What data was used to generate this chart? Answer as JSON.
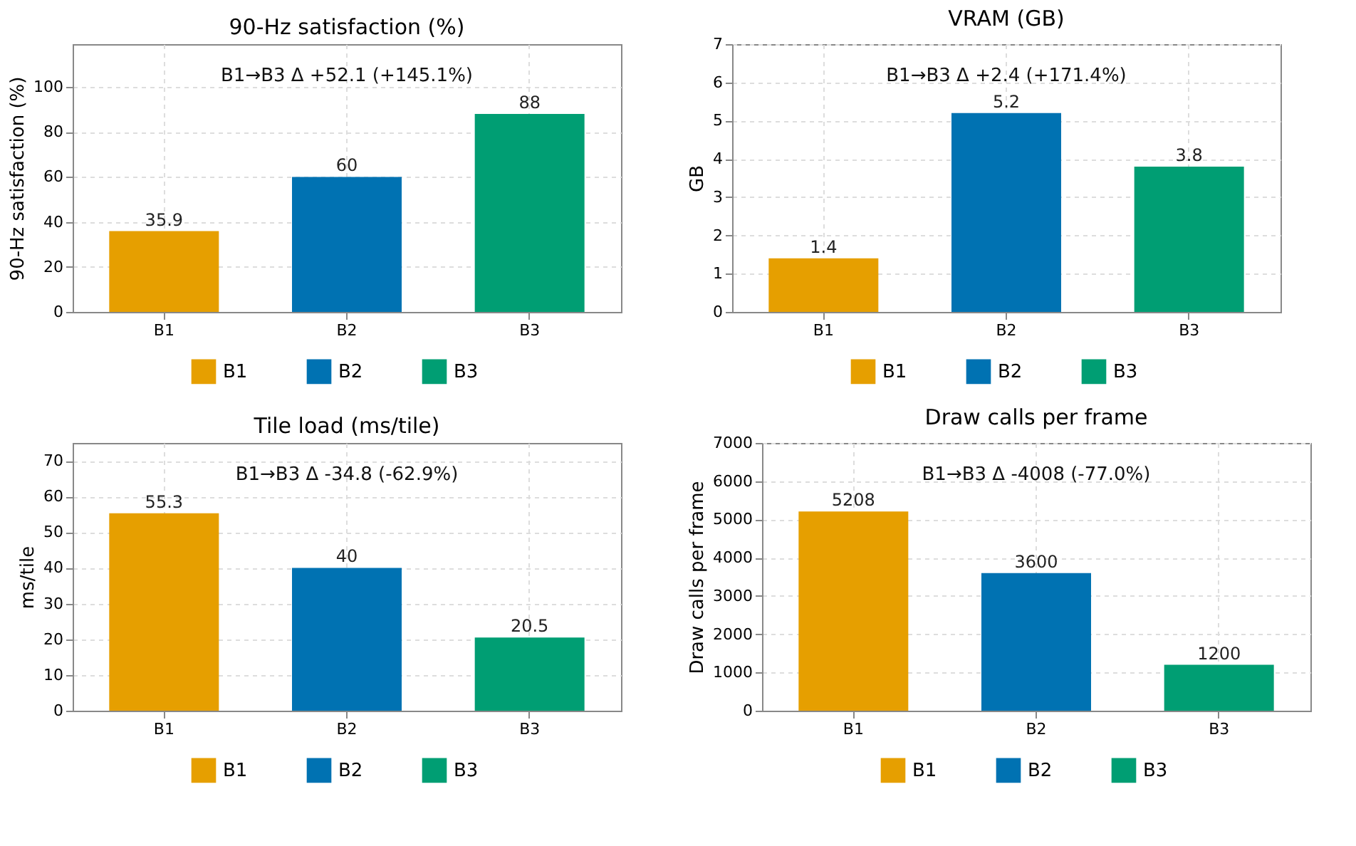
{
  "chart_data": [
    {
      "type": "bar",
      "title": "90-Hz satisfaction (%)",
      "ylabel": "90-Hz satisfaction (%)",
      "categories": [
        "B1",
        "B2",
        "B3"
      ],
      "series": [
        {
          "name": "B1",
          "color": "#e69f00",
          "values": [
            35.9,
            null,
            null
          ]
        },
        {
          "name": "B2",
          "color": "#0072b2",
          "values": [
            null,
            60,
            null
          ]
        },
        {
          "name": "B3",
          "color": "#009e73",
          "values": [
            null,
            null,
            88
          ]
        }
      ],
      "ylim": [
        0,
        119
      ],
      "yticks": [
        0,
        20,
        40,
        60,
        80,
        100
      ],
      "grid": true,
      "legend": "bottom",
      "data_labels": true,
      "annotations": [
        "B1→B3 Δ +52.1 (+145.1%)"
      ]
    },
    {
      "type": "bar",
      "title": "VRAM (GB)",
      "ylabel": "GB",
      "categories": [
        "B1",
        "B2",
        "B3"
      ],
      "series": [
        {
          "name": "B1",
          "color": "#e69f00",
          "values": [
            1.4,
            null,
            null
          ]
        },
        {
          "name": "B2",
          "color": "#0072b2",
          "values": [
            null,
            5.2,
            null
          ]
        },
        {
          "name": "B3",
          "color": "#009e73",
          "values": [
            null,
            null,
            3.8
          ]
        }
      ],
      "ylim": [
        0,
        7
      ],
      "yticks": [
        0,
        1,
        2,
        3,
        4,
        5,
        6,
        7
      ],
      "grid": true,
      "legend": "bottom",
      "data_labels": true,
      "annotations": [
        "B1→B3 Δ +2.4 (+171.4%)"
      ]
    },
    {
      "type": "bar",
      "title": "Tile load (ms/tile)",
      "ylabel": "ms/tile",
      "categories": [
        "B1",
        "B2",
        "B3"
      ],
      "series": [
        {
          "name": "B1",
          "color": "#e69f00",
          "values": [
            55.3,
            null,
            null
          ]
        },
        {
          "name": "B2",
          "color": "#0072b2",
          "values": [
            null,
            40,
            null
          ]
        },
        {
          "name": "B3",
          "color": "#009e73",
          "values": [
            null,
            null,
            20.5
          ]
        }
      ],
      "ylim": [
        0,
        75
      ],
      "yticks": [
        0,
        10,
        20,
        30,
        40,
        50,
        60,
        70
      ],
      "grid": true,
      "legend": "bottom",
      "data_labels": true,
      "annotations": [
        "B1→B3 Δ -34.8 (-62.9%)"
      ]
    },
    {
      "type": "bar",
      "title": "Draw calls per frame",
      "ylabel": "Draw calls per frame",
      "categories": [
        "B1",
        "B2",
        "B3"
      ],
      "series": [
        {
          "name": "B1",
          "color": "#e69f00",
          "values": [
            5208,
            null,
            null
          ]
        },
        {
          "name": "B2",
          "color": "#0072b2",
          "values": [
            null,
            3600,
            null
          ]
        },
        {
          "name": "B3",
          "color": "#009e73",
          "values": [
            null,
            null,
            1200
          ]
        }
      ],
      "ylim": [
        0,
        7000
      ],
      "yticks": [
        0,
        1000,
        2000,
        3000,
        4000,
        5000,
        6000,
        7000
      ],
      "grid": true,
      "legend": "bottom",
      "data_labels": true,
      "annotations": [
        "B1→B3 Δ -4008 (-77.0%)"
      ]
    }
  ]
}
